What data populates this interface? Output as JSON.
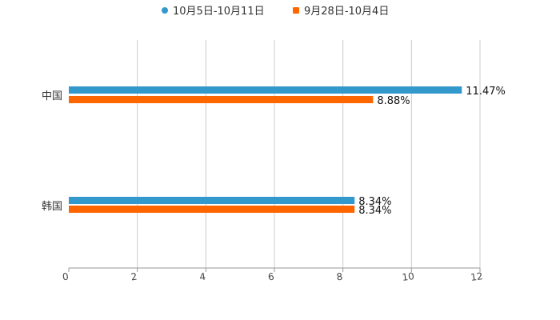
{
  "chart_data": {
    "type": "bar",
    "orientation": "horizontal",
    "title": "",
    "xlabel": "",
    "ylabel": "",
    "categories": [
      "中国",
      "韩国"
    ],
    "series": [
      {
        "name": "10月5日-10月11日",
        "color": "#3399cc",
        "values": [
          11.47,
          8.34
        ],
        "labels": [
          "11.47%",
          "8.34%"
        ]
      },
      {
        "name": "9月28日-10月4日",
        "color": "#ff6600",
        "values": [
          8.88,
          8.34
        ],
        "labels": [
          "8.88%",
          "8.34%"
        ]
      }
    ],
    "xlim": [
      0,
      12
    ],
    "xticks": [
      "0",
      "2",
      "4",
      "6",
      "8",
      "10",
      "12"
    ],
    "grid": true,
    "legend_position": "top-center"
  }
}
